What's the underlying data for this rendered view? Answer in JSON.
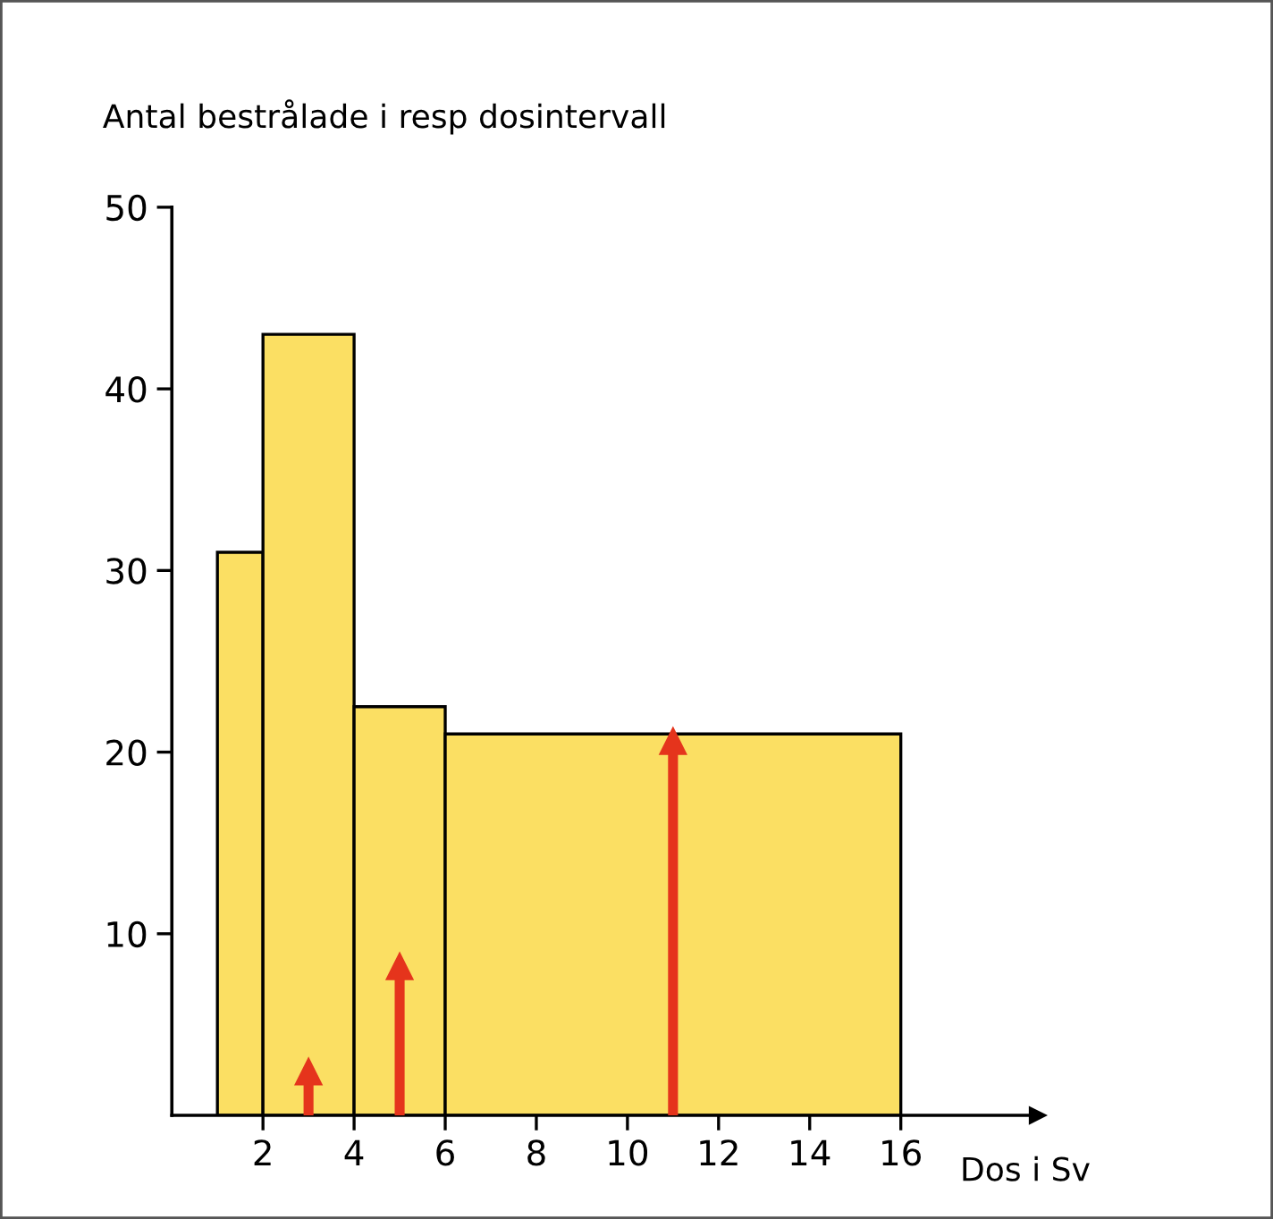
{
  "chart_data": {
    "type": "histogram",
    "ylabel": "Antal bestrålade i resp dosintervall",
    "xlabel": "Dos i Sv",
    "bins": [
      1,
      2,
      4,
      6,
      16
    ],
    "values": [
      31,
      43,
      22.5,
      21
    ],
    "color": "#fbdf63",
    "series": [
      {
        "type": "lollipop",
        "marker": "triangle",
        "color": "#e5341c",
        "x": [
          3,
          5,
          11
        ],
        "values": [
          2.4,
          8.2,
          20.6
        ]
      }
    ],
    "xlim": [
      0,
      19
    ],
    "ylim": [
      0,
      50
    ],
    "xticks": [
      2,
      4,
      6,
      8,
      10,
      12,
      14,
      16
    ],
    "yticks": [
      10,
      20,
      30,
      40,
      50
    ],
    "grid": false
  }
}
